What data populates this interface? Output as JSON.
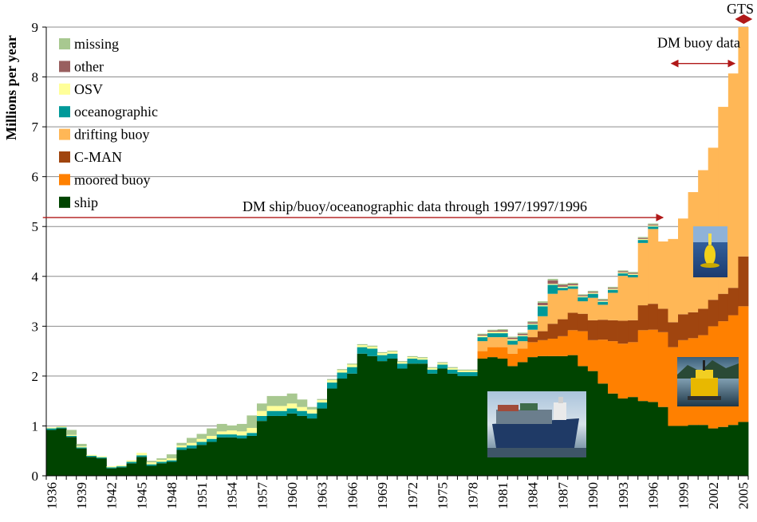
{
  "chart_data": {
    "type": "bar",
    "stacked": true,
    "title": "",
    "xlabel": "",
    "ylabel": "Millions per year",
    "ylim": [
      0,
      9
    ],
    "yticks": [
      0,
      1,
      2,
      3,
      4,
      5,
      6,
      7,
      8,
      9
    ],
    "grid": true,
    "legend_position": "top-left",
    "categories": [
      1936,
      1937,
      1938,
      1939,
      1940,
      1941,
      1942,
      1943,
      1944,
      1945,
      1946,
      1947,
      1948,
      1949,
      1950,
      1951,
      1952,
      1953,
      1954,
      1955,
      1956,
      1957,
      1958,
      1959,
      1960,
      1961,
      1962,
      1963,
      1964,
      1965,
      1966,
      1967,
      1968,
      1969,
      1970,
      1971,
      1972,
      1973,
      1974,
      1975,
      1976,
      1977,
      1978,
      1979,
      1980,
      1981,
      1982,
      1983,
      1984,
      1985,
      1986,
      1987,
      1988,
      1989,
      1990,
      1991,
      1992,
      1993,
      1994,
      1995,
      1996,
      1997,
      1998,
      1999,
      2000,
      2001,
      2002,
      2003,
      2004,
      2005
    ],
    "xtick_labels": [
      "1936",
      "1939",
      "1942",
      "1945",
      "1948",
      "1951",
      "1954",
      "1957",
      "1960",
      "1963",
      "1966",
      "1969",
      "1972",
      "1975",
      "1978",
      "1981",
      "1984",
      "1987",
      "1990",
      "1993",
      "1996",
      "1999",
      "2002",
      "2005"
    ],
    "series": [
      {
        "name": "ship",
        "color": "#004400",
        "values": [
          0.92,
          0.95,
          0.78,
          0.55,
          0.38,
          0.35,
          0.15,
          0.17,
          0.25,
          0.38,
          0.2,
          0.25,
          0.28,
          0.52,
          0.55,
          0.62,
          0.68,
          0.77,
          0.77,
          0.75,
          0.8,
          1.1,
          1.2,
          1.2,
          1.25,
          1.2,
          1.15,
          1.35,
          1.75,
          1.95,
          2.05,
          2.45,
          2.4,
          2.3,
          2.35,
          2.15,
          2.25,
          2.25,
          2.05,
          2.15,
          2.05,
          2.0,
          2.0,
          2.35,
          2.38,
          2.35,
          2.2,
          2.28,
          2.38,
          2.4,
          2.4,
          2.4,
          2.42,
          2.2,
          2.1,
          1.85,
          1.65,
          1.55,
          1.58,
          1.5,
          1.48,
          1.38,
          1.0,
          1.0,
          1.02,
          1.02,
          0.95,
          0.98,
          1.02,
          1.08
        ]
      },
      {
        "name": "moored buoy",
        "color": "#ff8000",
        "values": [
          0,
          0,
          0,
          0,
          0,
          0,
          0,
          0,
          0,
          0,
          0,
          0,
          0,
          0,
          0,
          0,
          0,
          0,
          0,
          0,
          0,
          0,
          0,
          0,
          0,
          0,
          0,
          0,
          0,
          0,
          0,
          0,
          0,
          0,
          0,
          0,
          0,
          0,
          0,
          0,
          0,
          0,
          0,
          0.15,
          0.2,
          0.23,
          0.25,
          0.27,
          0.3,
          0.32,
          0.35,
          0.4,
          0.5,
          0.7,
          0.62,
          0.88,
          1.05,
          1.1,
          1.1,
          1.42,
          1.45,
          1.5,
          1.58,
          1.72,
          1.74,
          1.8,
          2.05,
          2.12,
          2.2,
          2.32
        ]
      },
      {
        "name": "C-MAN",
        "color": "#a0450f",
        "values": [
          0,
          0,
          0,
          0,
          0,
          0,
          0,
          0,
          0,
          0,
          0,
          0,
          0,
          0,
          0,
          0,
          0,
          0,
          0,
          0,
          0,
          0,
          0,
          0,
          0,
          0,
          0,
          0,
          0,
          0,
          0,
          0,
          0,
          0,
          0,
          0,
          0,
          0,
          0,
          0,
          0,
          0,
          0,
          0,
          0,
          0,
          0,
          0,
          0.1,
          0.18,
          0.3,
          0.34,
          0.35,
          0.35,
          0.4,
          0.4,
          0.42,
          0.46,
          0.44,
          0.5,
          0.52,
          0.47,
          0.5,
          0.52,
          0.52,
          0.53,
          0.53,
          0.55,
          0.55,
          1.0
        ]
      },
      {
        "name": "drifting buoy",
        "color": "#ffb756",
        "values": [
          0,
          0,
          0,
          0,
          0,
          0,
          0,
          0,
          0,
          0,
          0,
          0,
          0,
          0,
          0,
          0,
          0,
          0,
          0,
          0,
          0,
          0,
          0,
          0,
          0,
          0,
          0,
          0,
          0,
          0,
          0,
          0,
          0,
          0,
          0,
          0,
          0,
          0,
          0,
          0,
          0,
          0,
          0,
          0.2,
          0.2,
          0.2,
          0.18,
          0.15,
          0.15,
          0.3,
          0.6,
          0.58,
          0.48,
          0.25,
          0.45,
          0.3,
          0.55,
          0.9,
          0.86,
          1.25,
          1.5,
          1.35,
          1.67,
          1.92,
          2.41,
          2.78,
          3.05,
          3.75,
          4.3,
          4.6
        ]
      },
      {
        "name": "oceanographic",
        "color": "#009999",
        "values": [
          0.03,
          0.02,
          0.02,
          0.02,
          0.02,
          0.02,
          0.02,
          0.02,
          0.03,
          0.03,
          0.03,
          0.03,
          0.03,
          0.05,
          0.06,
          0.06,
          0.06,
          0.06,
          0.06,
          0.06,
          0.06,
          0.1,
          0.1,
          0.1,
          0.1,
          0.1,
          0.1,
          0.12,
          0.12,
          0.12,
          0.13,
          0.13,
          0.15,
          0.12,
          0.1,
          0.1,
          0.1,
          0.08,
          0.08,
          0.08,
          0.08,
          0.08,
          0.08,
          0.08,
          0.08,
          0.08,
          0.08,
          0.1,
          0.1,
          0.2,
          0.18,
          0.05,
          0.05,
          0.08,
          0.08,
          0.06,
          0.06,
          0.05,
          0.05,
          0.06,
          0.05,
          0,
          0,
          0,
          0,
          0,
          0,
          0,
          0,
          0
        ]
      },
      {
        "name": "OSV",
        "color": "#ffff99",
        "values": [
          0.02,
          0.02,
          0.02,
          0.02,
          0.02,
          0.02,
          0.02,
          0.02,
          0.03,
          0.05,
          0.04,
          0.04,
          0.04,
          0.04,
          0.05,
          0.06,
          0.06,
          0.06,
          0.08,
          0.08,
          0.1,
          0.1,
          0.1,
          0.1,
          0.1,
          0.08,
          0.08,
          0.05,
          0.05,
          0.05,
          0.05,
          0.04,
          0.04,
          0.04,
          0.04,
          0.03,
          0.03,
          0.03,
          0.03,
          0.03,
          0.03,
          0.03,
          0.03,
          0.03,
          0.03,
          0.03,
          0.03,
          0.02,
          0.02,
          0.02,
          0.02,
          0.02,
          0.02,
          0.02,
          0.02,
          0.02,
          0.02,
          0.02,
          0.02,
          0.02,
          0.02,
          0,
          0,
          0,
          0,
          0,
          0,
          0,
          0,
          0
        ]
      },
      {
        "name": "other",
        "color": "#995f5f",
        "values": [
          0,
          0,
          0,
          0,
          0,
          0,
          0,
          0,
          0,
          0,
          0,
          0,
          0,
          0,
          0,
          0,
          0,
          0,
          0,
          0,
          0,
          0,
          0,
          0,
          0,
          0,
          0,
          0,
          0,
          0,
          0,
          0,
          0,
          0,
          0,
          0,
          0,
          0,
          0,
          0,
          0,
          0,
          0,
          0.02,
          0.02,
          0.03,
          0.03,
          0.03,
          0.03,
          0.05,
          0.07,
          0.04,
          0.03,
          0.02,
          0.02,
          0.02,
          0.02,
          0.02,
          0.02,
          0.02,
          0.02,
          0,
          0,
          0,
          0,
          0,
          0,
          0,
          0,
          0
        ]
      },
      {
        "name": "missing",
        "color": "#a8c890",
        "values": [
          0,
          0,
          0.1,
          0.05,
          0,
          0,
          0,
          0,
          0,
          0,
          0.03,
          0.03,
          0.08,
          0.05,
          0.1,
          0.1,
          0.15,
          0.15,
          0.1,
          0.15,
          0.25,
          0.15,
          0.2,
          0.2,
          0.2,
          0.15,
          0.05,
          0.02,
          0.02,
          0.02,
          0.02,
          0.02,
          0.02,
          0.02,
          0.02,
          0.02,
          0.02,
          0.02,
          0.02,
          0.02,
          0.02,
          0.02,
          0.02,
          0.02,
          0.02,
          0.02,
          0.02,
          0.02,
          0.02,
          0.03,
          0.03,
          0.02,
          0.02,
          0.02,
          0.02,
          0.02,
          0.02,
          0.02,
          0.02,
          0.02,
          0.02,
          0,
          0,
          0,
          0,
          0,
          0,
          0,
          0,
          0
        ]
      }
    ],
    "annotations": [
      {
        "text": "DM ship/buoy/oceanographic data through 1997/1997/1996",
        "arrow_from_year": 1935.5,
        "arrow_to_year": 1997,
        "y": 5.18
      },
      {
        "text": "DM buoy data",
        "arrow_from_year": 1998,
        "arrow_to_year": 2004,
        "y": 8.27
      },
      {
        "text": "GTS",
        "arrow_from_year": 2004.5,
        "arrow_to_year": 2005.6,
        "y": 9.0
      }
    ]
  },
  "photos": [
    {
      "name": "moored-buoy-photo"
    },
    {
      "name": "buoy-platform-photo"
    },
    {
      "name": "container-ship-photo"
    }
  ]
}
